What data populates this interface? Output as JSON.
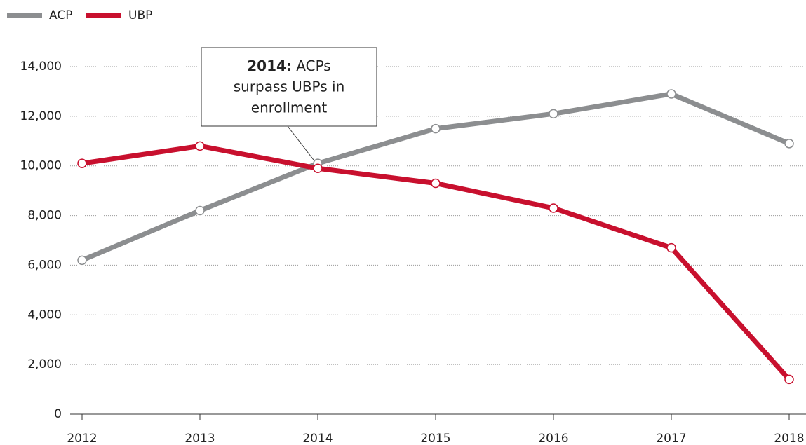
{
  "chart_data": {
    "type": "line",
    "categories": [
      "2012",
      "2013",
      "2014",
      "2015",
      "2016",
      "2017",
      "2018"
    ],
    "series": [
      {
        "name": "ACP",
        "color": "#8c8e90",
        "values": [
          6200,
          8200,
          10100,
          11500,
          12100,
          12900,
          10900
        ]
      },
      {
        "name": "UBP",
        "color": "#c8102e",
        "values": [
          10100,
          10800,
          9900,
          9300,
          8300,
          6700,
          1400
        ]
      }
    ],
    "ylim": [
      0,
      14000
    ],
    "yticks": [
      0,
      {
        "value": 2000,
        "label": "2,000"
      },
      {
        "value": 4000,
        "label": "4,000"
      },
      {
        "value": 6000,
        "label": "6,000"
      },
      {
        "value": 8000,
        "label": "8,000"
      },
      {
        "value": 10000,
        "label": "10,000"
      },
      {
        "value": 12000,
        "label": "12,000"
      },
      {
        "value": 14000,
        "label": "14,000"
      }
    ],
    "grid": true,
    "legend": "top-left",
    "annotation": {
      "lead": "2014:",
      "lines": [
        "ACPs",
        "surpass UBPs in",
        "enrollment"
      ]
    }
  }
}
